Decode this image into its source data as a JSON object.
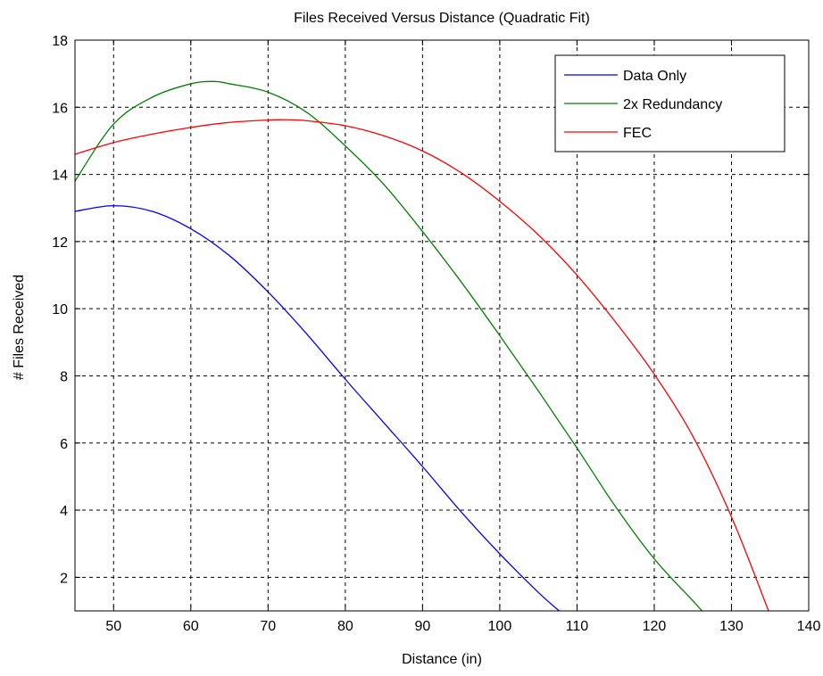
{
  "chart_data": {
    "type": "line",
    "title": "Files Received Versus Distance (Quadratic Fit)",
    "xlabel": "Distance (in)",
    "ylabel": "# Files Received",
    "xlim": [
      45,
      140
    ],
    "ylim": [
      1,
      18
    ],
    "xticks": [
      50,
      60,
      70,
      80,
      90,
      100,
      110,
      120,
      130,
      140
    ],
    "yticks": [
      2,
      4,
      6,
      8,
      10,
      12,
      14,
      16,
      18
    ],
    "grid": true,
    "legend_position": "top-right",
    "series": [
      {
        "name": "Data Only",
        "color": "#0000ff",
        "x": [
          45,
          50,
          55,
          60,
          65,
          70,
          75,
          80,
          85,
          90,
          95,
          100,
          105,
          107.7
        ],
        "y": [
          12.9,
          13.07,
          12.9,
          12.38,
          11.58,
          10.5,
          9.25,
          7.9,
          6.6,
          5.3,
          3.95,
          2.7,
          1.55,
          1.0
        ]
      },
      {
        "name": "2x Redundancy",
        "color": "#008000",
        "x": [
          45,
          50,
          55,
          60,
          63,
          65,
          70,
          75,
          80,
          85,
          90,
          95,
          100,
          105,
          110,
          115,
          120,
          125,
          126.2
        ],
        "y": [
          13.8,
          15.5,
          16.3,
          16.7,
          16.77,
          16.7,
          16.45,
          15.85,
          14.85,
          13.7,
          12.3,
          10.8,
          9.2,
          7.55,
          5.85,
          4.1,
          2.55,
          1.3,
          1.0
        ]
      },
      {
        "name": "FEC",
        "color": "#ff0000",
        "x": [
          45,
          50,
          55,
          60,
          65,
          70,
          72,
          75,
          80,
          85,
          90,
          95,
          100,
          105,
          110,
          115,
          120,
          125,
          130,
          134.8
        ],
        "y": [
          14.6,
          14.95,
          15.2,
          15.4,
          15.55,
          15.62,
          15.63,
          15.6,
          15.45,
          15.15,
          14.7,
          14.05,
          13.2,
          12.2,
          11.0,
          9.6,
          8.05,
          6.2,
          3.8,
          1.0
        ]
      }
    ]
  }
}
